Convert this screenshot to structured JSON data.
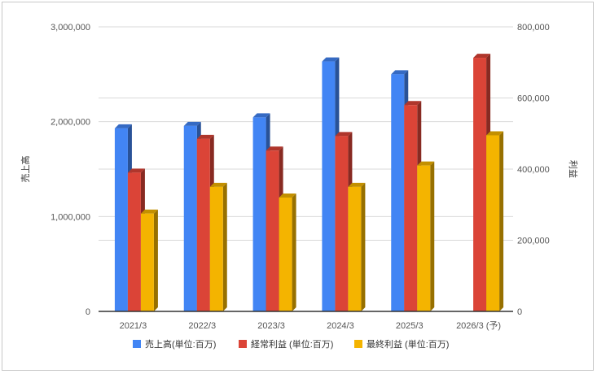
{
  "chart_data": {
    "type": "bar",
    "categories": [
      "2021/3",
      "2022/3",
      "2023/3",
      "2024/3",
      "2025/3",
      "2026/3 (予)"
    ],
    "series": [
      {
        "name": "売上高(単位:百万)",
        "axis": "left",
        "color": "#4285f4",
        "values": [
          1930000,
          1955000,
          2045000,
          2635000,
          2500000,
          null
        ]
      },
      {
        "name": "経常利益 (単位:百万)",
        "axis": "right",
        "color": "#db4437",
        "values": [
          390000,
          485000,
          452000,
          493000,
          580000,
          713000
        ]
      },
      {
        "name": "最終利益 (単位:百万)",
        "axis": "right",
        "color": "#f4b400",
        "values": [
          275000,
          350000,
          320000,
          350000,
          410000,
          495000
        ]
      }
    ],
    "y_left": {
      "label": "売上高",
      "ylim": [
        0,
        3000000
      ],
      "ticks": [
        "0",
        "1,000,000",
        "2,000,000",
        "3,000,000"
      ]
    },
    "y_right": {
      "label": "利益",
      "ylim": [
        0,
        800000
      ],
      "ticks": [
        "0",
        "200,000",
        "400,000",
        "600,000",
        "800,000"
      ]
    },
    "grid": true,
    "legend": "bottom"
  }
}
